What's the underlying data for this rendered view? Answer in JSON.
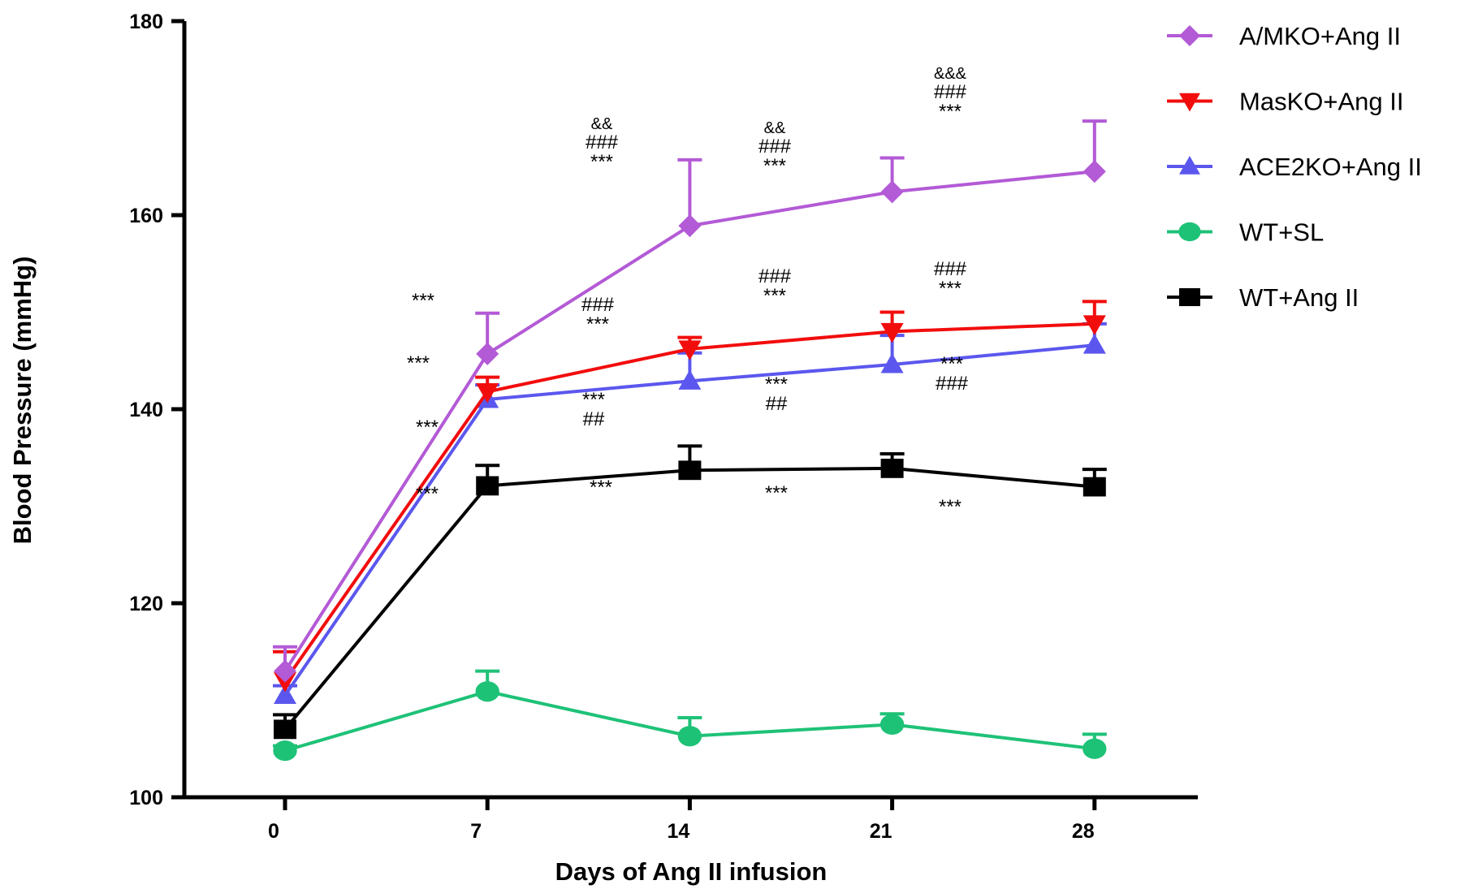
{
  "chart_data": {
    "type": "line",
    "xlabel": "Days of Ang II infusion",
    "ylabel": "Blood Pressure (mmHg)",
    "x": [
      0,
      7,
      14,
      21,
      28
    ],
    "x_tick_labels": [
      "0",
      "7",
      "14",
      "21",
      "28"
    ],
    "ylim": [
      100,
      180
    ],
    "y_ticks": [
      100,
      120,
      140,
      160,
      180
    ],
    "y_tick_labels": [
      "100",
      "120",
      "140",
      "160",
      "180"
    ],
    "grid": false,
    "legend_position": "right",
    "series": [
      {
        "name": "A/MKO+Ang II",
        "color": "#b35ad6",
        "marker": "diamond",
        "values": [
          113,
          145.7,
          158.9,
          162.4,
          164.5
        ],
        "error": [
          2.5,
          4.2,
          6.8,
          3.5,
          5.2
        ]
      },
      {
        "name": "MasKO+Ang II",
        "color": "#f20d0d",
        "marker": "triangle-down",
        "values": [
          112,
          141.8,
          146.2,
          148,
          148.8
        ],
        "error": [
          3,
          1.5,
          1.2,
          2,
          2.3
        ]
      },
      {
        "name": "ACE2KO+Ang II",
        "color": "#5b57ee",
        "marker": "triangle-up",
        "values": [
          110.5,
          141,
          142.9,
          144.6,
          146.6
        ],
        "error": [
          1,
          1.5,
          2.9,
          3,
          2.2
        ]
      },
      {
        "name": "WT+SL",
        "color": "#1ec277",
        "marker": "circle",
        "values": [
          104.8,
          110.9,
          106.3,
          107.5,
          105
        ],
        "error": [
          0.5,
          2.1,
          1.9,
          1.1,
          1.5
        ]
      },
      {
        "name": "WT+Ang II",
        "color": "#000000",
        "marker": "square",
        "values": [
          107,
          132.1,
          133.7,
          133.9,
          132
        ],
        "error": [
          1.5,
          2.1,
          2.5,
          1.5,
          1.8
        ]
      }
    ],
    "annotations": [
      {
        "x": 7,
        "lines": [
          "***"
        ]
      },
      {
        "x": 7,
        "lines": [
          "***"
        ]
      },
      {
        "x": 7,
        "lines": [
          "***"
        ]
      },
      {
        "x": 7,
        "lines": [
          "***"
        ]
      },
      {
        "x": 14,
        "lines": [
          "&&",
          "###",
          "***"
        ]
      },
      {
        "x": 14,
        "lines": [
          "###",
          "***"
        ]
      },
      {
        "x": 14,
        "lines": [
          "***",
          "##"
        ]
      },
      {
        "x": 14,
        "lines": [
          "***"
        ]
      },
      {
        "x": 21,
        "lines": [
          "&&",
          "###",
          "***"
        ]
      },
      {
        "x": 21,
        "lines": [
          "###",
          "***"
        ]
      },
      {
        "x": 21,
        "lines": [
          "***",
          "##"
        ]
      },
      {
        "x": 21,
        "lines": [
          "***"
        ]
      },
      {
        "x": 28,
        "lines": [
          "&&&",
          "###",
          "***"
        ]
      },
      {
        "x": 28,
        "lines": [
          "###",
          "***"
        ]
      },
      {
        "x": 28,
        "lines": [
          "***",
          "###"
        ]
      },
      {
        "x": 28,
        "lines": [
          "***"
        ]
      }
    ]
  }
}
